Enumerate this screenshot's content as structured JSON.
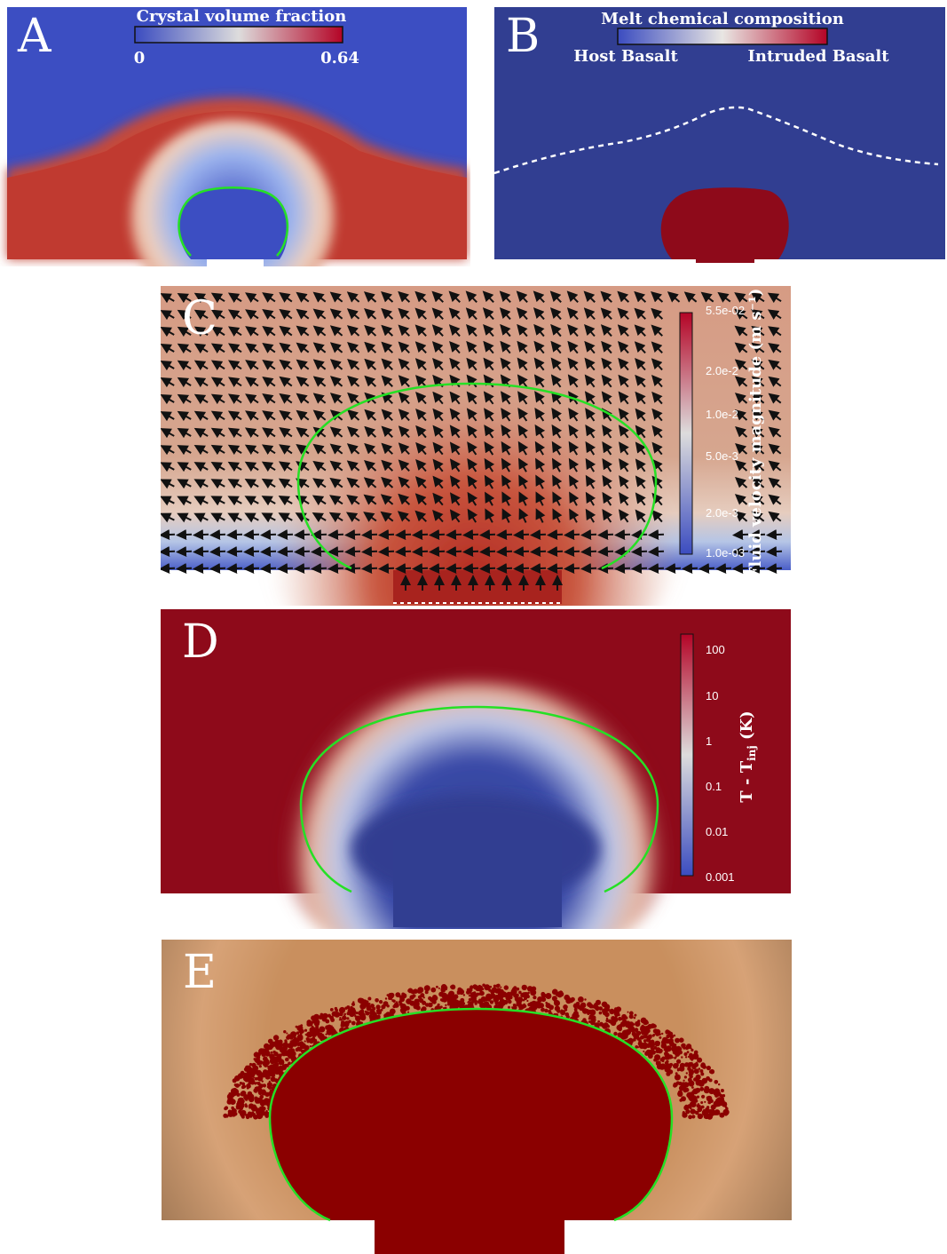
{
  "panels": {
    "a": {
      "label": "A",
      "colorbar": {
        "title": "Crystal volume fraction",
        "min": "0",
        "max": "0.64"
      }
    },
    "b": {
      "label": "B",
      "colorbar": {
        "title": "Melt chemical composition",
        "left": "Host Basalt",
        "right": "Intruded Basalt"
      }
    },
    "c": {
      "label": "C",
      "colorbar": {
        "title": "Fluid velocity magnitude (m s⁻¹)",
        "ticks": [
          "5.5e-02",
          "2.0e-2",
          "1.0e-2",
          "5.0e-3",
          "2.0e-3",
          "1.0e-03"
        ]
      }
    },
    "d": {
      "label": "D",
      "colorbar": {
        "title": "T - T",
        "title_sub": "inj",
        "title_unit": " (K)",
        "ticks": [
          "100",
          "10",
          "1",
          "0.1",
          "0.01",
          "0.001"
        ]
      }
    },
    "e": {
      "label": "E"
    }
  },
  "colors": {
    "blue": "#313e91",
    "red": "#8e0a1a",
    "salmon": "#d09b83",
    "tan": "#c98f5e",
    "dark": "#2a2a28",
    "green": "#25e025"
  }
}
